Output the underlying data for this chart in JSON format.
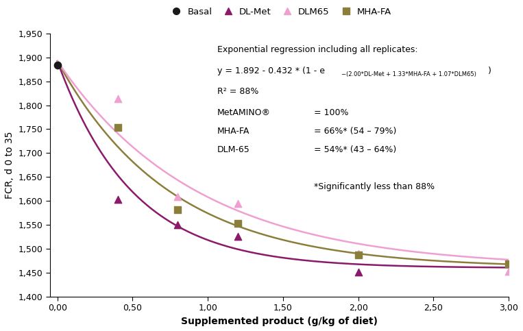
{
  "basal_point": [
    0.0,
    1884
  ],
  "dlmet_points": [
    [
      0.4,
      1604
    ],
    [
      0.8,
      1551
    ],
    [
      1.2,
      1526
    ],
    [
      2.0,
      1452
    ]
  ],
  "dlm65_points": [
    [
      0.4,
      1814
    ],
    [
      0.8,
      1609
    ],
    [
      1.2,
      1595
    ],
    [
      2.0,
      1490
    ],
    [
      3.0,
      1453
    ]
  ],
  "mhafa_points": [
    [
      0.4,
      1753
    ],
    [
      0.8,
      1582
    ],
    [
      1.2,
      1553
    ],
    [
      2.0,
      1488
    ],
    [
      3.0,
      1469
    ]
  ],
  "color_basal": "#1a1a1a",
  "color_dlmet": "#8B1A6B",
  "color_dlm65": "#f0a0d0",
  "color_mhafa": "#8b7d3a",
  "ylim": [
    1400,
    1950
  ],
  "xlim": [
    -0.05,
    3.0
  ],
  "yticks": [
    1400,
    1450,
    1500,
    1550,
    1600,
    1650,
    1700,
    1750,
    1800,
    1850,
    1900,
    1950
  ],
  "xticks": [
    0.0,
    0.5,
    1.0,
    1.5,
    2.0,
    2.5,
    3.0
  ],
  "xlabel": "Supplemented product (g/kg of diet)",
  "ylabel": "FCR, d 0 to 35",
  "eq_a": 1892,
  "eq_b": 432,
  "eq_dlmet": 2.0,
  "eq_mhafa": 1.33,
  "eq_dlm65": 1.07
}
